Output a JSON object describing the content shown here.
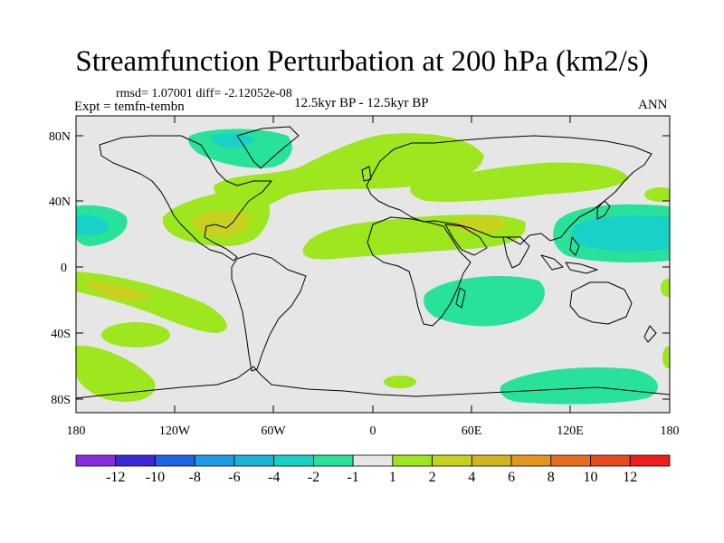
{
  "title": "Streamfunction Perturbation at 200 hPa (km2/s)",
  "stats": "rmsd= 1.07001 diff= -2.12052e-08",
  "expt": "Expt = temfn-tembn",
  "period": "12.5kyr BP - 12.5kyr BP",
  "season": "ANN",
  "lat_ticks": [
    "80N",
    "40N",
    "0",
    "40S",
    "80S"
  ],
  "lon_ticks": [
    "180",
    "120W",
    "60W",
    "0",
    "60E",
    "120E",
    "180"
  ],
  "colorbar": {
    "labels": [
      "-12",
      "-10",
      "-8",
      "-6",
      "-4",
      "-2",
      "-1",
      "1",
      "2",
      "4",
      "6",
      "8",
      "10",
      "12"
    ],
    "colors": [
      "#8a2be2",
      "#3c28d8",
      "#1e64e6",
      "#1e9be6",
      "#18b4d8",
      "#18d2c8",
      "#28e29a",
      "#e6e6e6",
      "#9ee61e",
      "#c8d21e",
      "#d2b41e",
      "#e6961e",
      "#e66e1e",
      "#e64a1e",
      "#f01e1e"
    ]
  },
  "field_colors": {
    "background": "#e6e6e6",
    "pos1": "#9ee61e",
    "pos2": "#c8d21e",
    "neg1": "#28e29a",
    "neg2": "#18d2c8"
  }
}
